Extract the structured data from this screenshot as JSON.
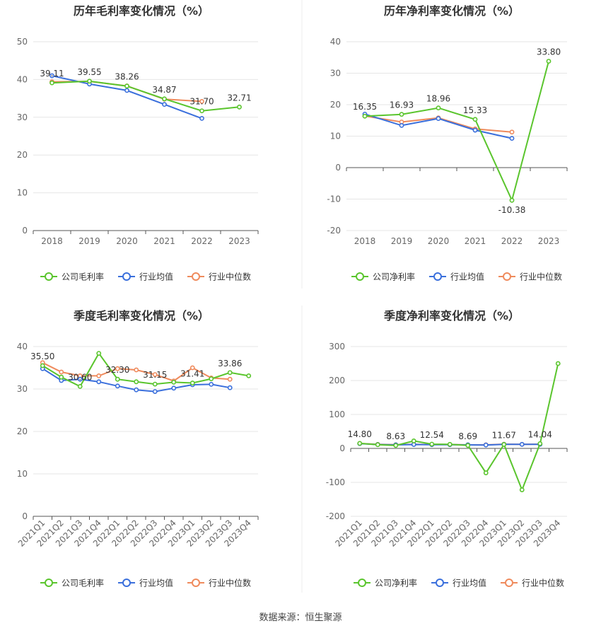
{
  "source_label": "数据来源：恒生聚源",
  "colors": {
    "company": "#5ac52d",
    "avg": "#3a6fdc",
    "median": "#ef8a5c",
    "grid": "#e6e6e6",
    "axis": "#666666"
  },
  "chart_data": [
    {
      "id": "annual-gross",
      "type": "line",
      "title": "历年毛利率变化情况（%）",
      "categories": [
        "2018",
        "2019",
        "2020",
        "2021",
        "2022",
        "2023"
      ],
      "ylim": [
        0,
        50
      ],
      "yticks": [
        0,
        10,
        20,
        30,
        40,
        50
      ],
      "series": [
        {
          "name": "公司毛利率",
          "role": "company",
          "values": [
            39.11,
            39.55,
            38.26,
            34.87,
            31.7,
            32.71
          ],
          "labels": [
            "39.11",
            "39.55",
            "38.26",
            "34.87",
            "31.70",
            "32.71"
          ]
        },
        {
          "name": "行业均值",
          "role": "avg",
          "values": [
            41.0,
            38.8,
            37.1,
            33.4,
            29.7,
            null
          ]
        },
        {
          "name": "行业中位数",
          "role": "median",
          "values": [
            39.4,
            39.5,
            38.3,
            34.8,
            34.2,
            null
          ]
        }
      ],
      "xtick_rotate": false
    },
    {
      "id": "annual-net",
      "type": "line",
      "title": "历年净利率变化情况（%）",
      "categories": [
        "2018",
        "2019",
        "2020",
        "2021",
        "2022",
        "2023"
      ],
      "ylim": [
        -20,
        40
      ],
      "yticks": [
        -20,
        -10,
        0,
        10,
        20,
        30,
        40
      ],
      "series": [
        {
          "name": "公司净利率",
          "role": "company",
          "values": [
            16.35,
            16.93,
            18.96,
            15.33,
            -10.38,
            33.8
          ],
          "labels": [
            "16.35",
            "16.93",
            "18.96",
            "15.33",
            "-10.38",
            "33.80"
          ]
        },
        {
          "name": "行业均值",
          "role": "avg",
          "values": [
            17.0,
            13.4,
            15.6,
            11.9,
            9.3,
            null
          ]
        },
        {
          "name": "行业中位数",
          "role": "median",
          "values": [
            16.4,
            14.5,
            15.8,
            12.3,
            11.3,
            null
          ]
        }
      ],
      "xtick_rotate": false
    },
    {
      "id": "quarter-gross",
      "type": "line",
      "title": "季度毛利率变化情况（%）",
      "categories": [
        "2021Q1",
        "2021Q2",
        "2021Q3",
        "2021Q4",
        "2022Q1",
        "2022Q2",
        "2022Q3",
        "2022Q4",
        "2023Q1",
        "2023Q2",
        "2023Q3",
        "2023Q4"
      ],
      "ylim": [
        0,
        40
      ],
      "yticks": [
        0,
        10,
        20,
        30,
        40
      ],
      "series": [
        {
          "name": "公司毛利率",
          "role": "company",
          "values": [
            35.5,
            32.8,
            30.6,
            38.4,
            32.3,
            31.7,
            31.15,
            31.6,
            31.41,
            32.4,
            33.86,
            33.1
          ],
          "labels": [
            "35.50",
            "",
            "30.60",
            "",
            "32.30",
            "",
            "31.15",
            "",
            "31.41",
            "",
            "33.86",
            ""
          ]
        },
        {
          "name": "行业均值",
          "role": "avg",
          "values": [
            34.8,
            32.0,
            32.3,
            31.7,
            30.7,
            29.8,
            29.4,
            30.2,
            31.0,
            31.1,
            30.3,
            null
          ]
        },
        {
          "name": "行业中位数",
          "role": "median",
          "values": [
            36.2,
            34.0,
            33.1,
            33.1,
            34.8,
            34.5,
            33.4,
            31.9,
            35.0,
            32.6,
            32.3,
            null
          ]
        }
      ],
      "xtick_rotate": true
    },
    {
      "id": "quarter-net",
      "type": "line",
      "title": "季度净利率变化情况（%）",
      "categories": [
        "2021Q1",
        "2021Q2",
        "2021Q3",
        "2021Q4",
        "2022Q1",
        "2022Q2",
        "2022Q3",
        "2022Q4",
        "2023Q1",
        "2023Q2",
        "2023Q3",
        "2023Q4"
      ],
      "ylim": [
        -200,
        300
      ],
      "yticks": [
        -200,
        -100,
        0,
        100,
        200,
        300
      ],
      "series": [
        {
          "name": "公司净利率",
          "role": "company",
          "values": [
            14.8,
            11.0,
            8.63,
            22.0,
            12.54,
            12.0,
            8.69,
            -72.0,
            11.67,
            -122.0,
            14.04,
            250.0
          ],
          "labels": [
            "14.80",
            "",
            "8.63",
            "",
            "12.54",
            "",
            "8.69",
            "",
            "11.67",
            "",
            "14.04",
            ""
          ]
        },
        {
          "name": "行业均值",
          "role": "avg",
          "values": [
            14.0,
            11.5,
            10.5,
            11.5,
            11.0,
            11.0,
            10.5,
            10.0,
            12.0,
            12.0,
            12.0,
            null
          ]
        },
        {
          "name": "行业中位数",
          "role": "median",
          "values": [
            14.5,
            12.0,
            11.0,
            12.0,
            11.5,
            11.5,
            10.5,
            10.5,
            12.5,
            12.0,
            12.5,
            null
          ]
        }
      ],
      "xtick_rotate": true
    }
  ]
}
